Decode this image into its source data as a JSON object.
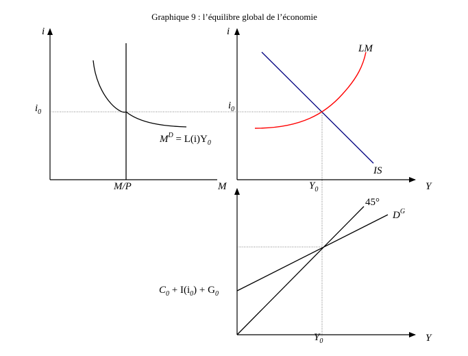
{
  "title": "Graphique 9 : l’équilibre global de l’économie",
  "money_market": {
    "y_axis_label": "i",
    "x_axis_label": "M",
    "interest_label": "i",
    "interest_sub": "0",
    "supply_label": "M/P",
    "demand_label_M": "M",
    "demand_label_D": "D",
    "demand_label_rest": " = L(i)Y",
    "demand_label_sub": "0"
  },
  "islm": {
    "y_axis_label": "i",
    "x_axis_label": "Y",
    "interest_label": "i",
    "interest_sub": "0",
    "output_label": "Y",
    "output_sub": "0",
    "lm_label": "LM",
    "is_label": "IS"
  },
  "goods_market": {
    "x_axis_label": "Y",
    "output_label": "Y",
    "output_sub": "0",
    "line45_label": "45°",
    "demand_label": "D",
    "demand_sup": "G",
    "intercept_c": "C",
    "intercept_c_sub": "0",
    "intercept_plus_i": " + I(i",
    "intercept_i_sub": "0",
    "intercept_close": ") + G",
    "intercept_g_sub": "0"
  },
  "colors": {
    "axes": "#000000",
    "lm_curve": "#ff0000",
    "is_curve": "#000080",
    "guides": "#555555"
  }
}
